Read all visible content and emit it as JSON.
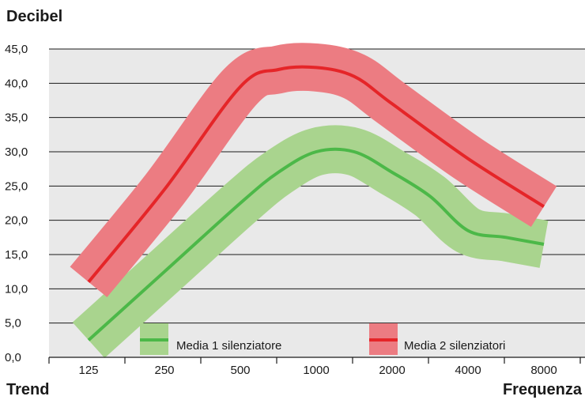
{
  "chart_data": {
    "type": "line",
    "ylabel": "Decibel",
    "xlabel": "Frequenza",
    "footer_left": "Trend",
    "categories": [
      "125",
      "250",
      "500",
      "1000",
      "2000",
      "4000",
      "8000"
    ],
    "yticks": [
      "0,0",
      "5,0",
      "10,0",
      "15,0",
      "20,0",
      "25,0",
      "30,0",
      "35,0",
      "40,0",
      "45,0"
    ],
    "ylim": [
      0,
      45
    ],
    "grid": true,
    "series": [
      {
        "name": "Media 1 silenziatore",
        "color": "#4cb848",
        "band_color": "#a9d48e",
        "band_width_db": 3.5,
        "x": [
          0.0,
          1.0,
          2.0,
          2.5,
          3.0,
          3.5,
          4.0,
          4.5,
          5.0,
          5.5,
          6.0
        ],
        "values": [
          2.5,
          12.5,
          22.5,
          27.0,
          30.0,
          30.0,
          27.0,
          23.5,
          18.5,
          17.5,
          16.5
        ]
      },
      {
        "name": "Media 2 silenziatori",
        "color": "#e52528",
        "band_color": "#ec7c82",
        "band_width_db": 3.5,
        "x": [
          0.0,
          1.0,
          2.0,
          2.5,
          3.0,
          3.5,
          4.0,
          5.0,
          6.0
        ],
        "values": [
          11.0,
          24.5,
          39.5,
          42.0,
          42.3,
          41.0,
          37.0,
          29.0,
          22.0
        ]
      }
    ]
  }
}
